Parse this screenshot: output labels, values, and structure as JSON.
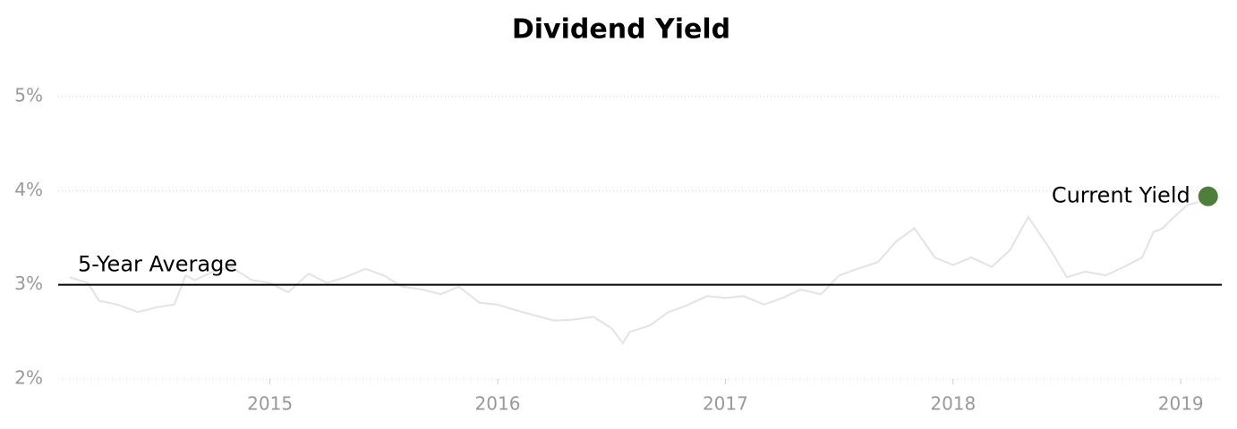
{
  "chart_data": {
    "type": "line",
    "title": "Dividend Yield",
    "x": [
      2014.12,
      2014.2,
      2014.25,
      2014.33,
      2014.42,
      2014.5,
      2014.58,
      2014.63,
      2014.67,
      2014.75,
      2014.83,
      2014.92,
      2015.0,
      2015.08,
      2015.17,
      2015.25,
      2015.33,
      2015.42,
      2015.5,
      2015.58,
      2015.67,
      2015.75,
      2015.83,
      2015.92,
      2016.0,
      2016.08,
      2016.17,
      2016.25,
      2016.33,
      2016.42,
      2016.5,
      2016.55,
      2016.58,
      2016.67,
      2016.75,
      2016.83,
      2016.92,
      2017.0,
      2017.08,
      2017.17,
      2017.25,
      2017.33,
      2017.42,
      2017.5,
      2017.58,
      2017.67,
      2017.75,
      2017.83,
      2017.92,
      2018.0,
      2018.08,
      2018.17,
      2018.25,
      2018.33,
      2018.42,
      2018.5,
      2018.58,
      2018.67,
      2018.75,
      2018.83,
      2018.88,
      2018.92,
      2018.97,
      2019.03,
      2019.08
    ],
    "values": [
      3.08,
      3.02,
      2.83,
      2.79,
      2.71,
      2.76,
      2.79,
      3.1,
      3.05,
      3.14,
      3.19,
      3.05,
      3.02,
      2.92,
      3.12,
      3.02,
      3.08,
      3.17,
      3.1,
      2.98,
      2.95,
      2.9,
      2.98,
      2.81,
      2.79,
      2.73,
      2.67,
      2.62,
      2.63,
      2.66,
      2.54,
      2.38,
      2.5,
      2.57,
      2.71,
      2.78,
      2.88,
      2.86,
      2.88,
      2.79,
      2.86,
      2.95,
      2.9,
      3.1,
      3.17,
      3.24,
      3.46,
      3.6,
      3.29,
      3.21,
      3.29,
      3.19,
      3.37,
      3.72,
      3.4,
      3.08,
      3.14,
      3.1,
      3.19,
      3.29,
      3.56,
      3.6,
      3.72,
      3.85,
      3.88
    ],
    "color": "#e3e3e3",
    "xlim": [
      2014.07,
      2019.18
    ],
    "xticks": [
      2015,
      2016,
      2017,
      2018,
      2019
    ],
    "ylim": [
      2,
      5
    ],
    "yticks": [
      {
        "value": 2,
        "label": "2%"
      },
      {
        "value": 3,
        "label": "3%"
      },
      {
        "value": 4,
        "label": "4%"
      },
      {
        "value": 5,
        "label": "5%"
      }
    ],
    "grid": true,
    "average": {
      "label": "5-Year Average",
      "value": 3.0,
      "color": "#000000"
    },
    "current": {
      "label": "Current Yield",
      "x": 2019.12,
      "value": 3.94,
      "color": "#4e7f3a"
    }
  }
}
